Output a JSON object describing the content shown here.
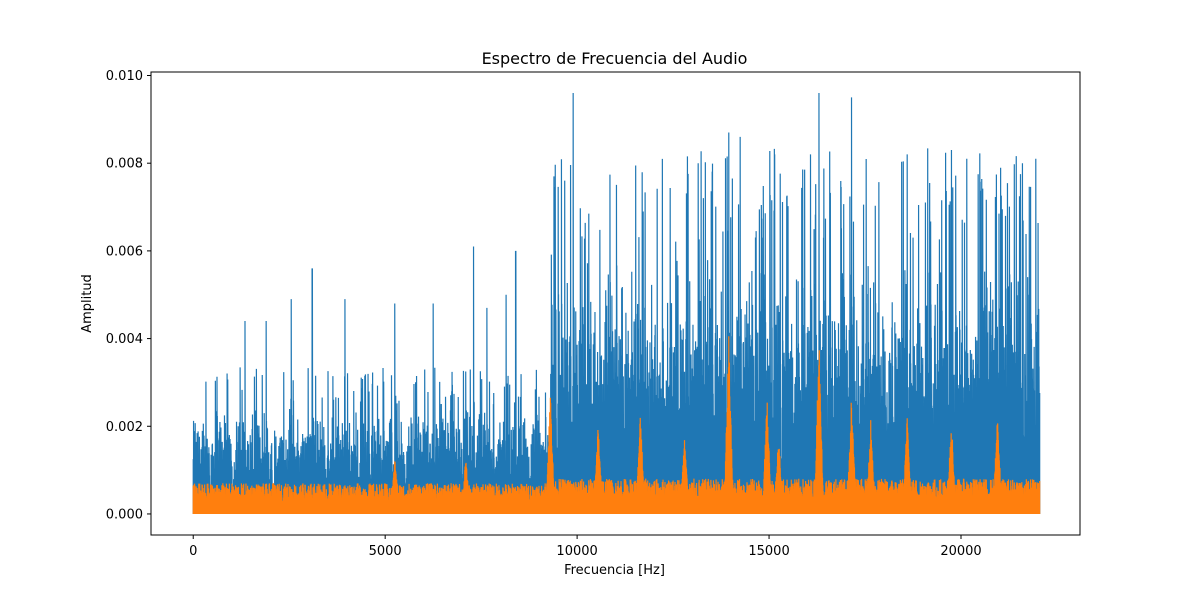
{
  "chart_data": {
    "type": "line",
    "title": "Espectro de Frecuencia del Audio",
    "xlabel": "Frecuencia [Hz]",
    "ylabel": "Amplitud",
    "xlim": [
      -1100,
      23100
    ],
    "ylim": [
      -0.00048,
      0.01008
    ],
    "x_ticks": [
      0,
      5000,
      10000,
      15000,
      20000
    ],
    "x_tick_labels": [
      "0",
      "5000",
      "10000",
      "15000",
      "20000"
    ],
    "y_ticks": [
      0.0,
      0.002,
      0.004,
      0.006,
      0.008,
      0.01
    ],
    "y_tick_labels": [
      "0.000",
      "0.002",
      "0.004",
      "0.006",
      "0.008",
      "0.010"
    ],
    "grid": false,
    "legend": "none",
    "colors": {
      "series1": "#1f77b4",
      "series2": "#ff7f0e"
    },
    "series": [
      {
        "x_range": [
          0,
          22050
        ],
        "band_levels": [
          {
            "x": [
              0,
              9300
            ],
            "typical_peak": 0.0025,
            "baseline": 0.0004
          },
          {
            "x": [
              9300,
              22050
            ],
            "typical_peak": 0.0062,
            "baseline": 0.0008
          }
        ],
        "peaks": [
          {
            "x": 9900,
            "y": 0.0096
          },
          {
            "x": 16300,
            "y": 0.0096
          },
          {
            "x": 17150,
            "y": 0.0095
          },
          {
            "x": 13950,
            "y": 0.0087
          },
          {
            "x": 14250,
            "y": 0.0086
          },
          {
            "x": 19750,
            "y": 0.0083
          },
          {
            "x": 21950,
            "y": 0.0081
          },
          {
            "x": 21600,
            "y": 0.008
          },
          {
            "x": 9400,
            "y": 0.0077
          },
          {
            "x": 15150,
            "y": 0.0082
          },
          {
            "x": 18600,
            "y": 0.0082
          },
          {
            "x": 20150,
            "y": 0.0081
          },
          {
            "x": 3100,
            "y": 0.0056
          },
          {
            "x": 7300,
            "y": 0.0061
          },
          {
            "x": 8400,
            "y": 0.006
          },
          {
            "x": 1350,
            "y": 0.0044
          },
          {
            "x": 1900,
            "y": 0.0044
          },
          {
            "x": 2550,
            "y": 0.0049
          },
          {
            "x": 3950,
            "y": 0.0049
          },
          {
            "x": 5250,
            "y": 0.0048
          },
          {
            "x": 6250,
            "y": 0.0048
          },
          {
            "x": 7650,
            "y": 0.0047
          },
          {
            "x": 8150,
            "y": 0.005
          }
        ]
      },
      {
        "x_range": [
          0,
          22050
        ],
        "baseline_typical": 0.0007,
        "peaks": [
          {
            "x": 9300,
            "y": 0.0029
          },
          {
            "x": 13950,
            "y": 0.0042
          },
          {
            "x": 16300,
            "y": 0.0042
          },
          {
            "x": 14950,
            "y": 0.0028
          },
          {
            "x": 17150,
            "y": 0.0028
          },
          {
            "x": 11650,
            "y": 0.0024
          },
          {
            "x": 10550,
            "y": 0.0021
          },
          {
            "x": 12800,
            "y": 0.0018
          },
          {
            "x": 15250,
            "y": 0.0019
          },
          {
            "x": 17650,
            "y": 0.0022
          },
          {
            "x": 18600,
            "y": 0.0023
          },
          {
            "x": 19750,
            "y": 0.0022
          },
          {
            "x": 20950,
            "y": 0.0023
          },
          {
            "x": 5250,
            "y": 0.0014
          },
          {
            "x": 7100,
            "y": 0.0013
          }
        ]
      }
    ]
  }
}
